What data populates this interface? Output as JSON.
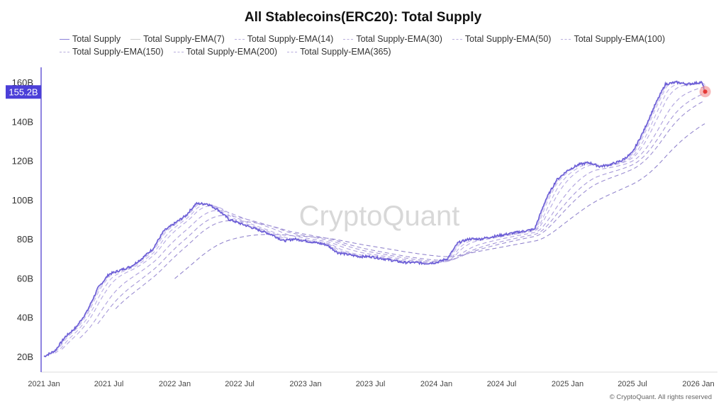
{
  "chart_data": {
    "type": "line",
    "title": "All Stablecoins(ERC20): Total Supply",
    "legend_position": "top",
    "ylim": [
      15,
      165
    ],
    "y_ticks": [
      "20B",
      "40B",
      "60B",
      "80B",
      "100B",
      "120B",
      "140B",
      "160B"
    ],
    "y_tick_values": [
      20,
      40,
      60,
      80,
      100,
      120,
      140,
      160
    ],
    "x_ticks": [
      "2021 Jan",
      "2021 Jul",
      "2022 Jan",
      "2022 Jul",
      "2023 Jan",
      "2023 Jul",
      "2024 Jan",
      "2024 Jul",
      "2025 Jan",
      "2025 Jul",
      "2026 Jan"
    ],
    "x_tick_dates": [
      "2021-01-01",
      "2021-07-01",
      "2022-01-01",
      "2022-07-01",
      "2023-01-01",
      "2023-07-01",
      "2024-01-01",
      "2024-07-01",
      "2025-01-01",
      "2025-07-01",
      "2026-01-01"
    ],
    "xlim": [
      "2021-01-01",
      "2026-02-10"
    ],
    "current_value_label": "155.2B",
    "series": [
      {
        "name": "Total Supply",
        "style": "solid",
        "color": "#6a5cd6",
        "dates": [
          "2021-01-01",
          "2021-02-01",
          "2021-03-01",
          "2021-04-01",
          "2021-05-01",
          "2021-06-01",
          "2021-07-01",
          "2021-08-01",
          "2021-09-01",
          "2021-10-01",
          "2021-11-01",
          "2021-12-01",
          "2022-01-01",
          "2022-02-01",
          "2022-03-01",
          "2022-04-01",
          "2022-05-01",
          "2022-06-01",
          "2022-07-01",
          "2022-08-01",
          "2022-09-01",
          "2022-10-01",
          "2022-11-01",
          "2022-12-01",
          "2023-01-01",
          "2023-02-01",
          "2023-03-01",
          "2023-04-01",
          "2023-05-01",
          "2023-06-01",
          "2023-07-01",
          "2023-08-01",
          "2023-09-01",
          "2023-10-01",
          "2023-11-01",
          "2023-12-01",
          "2024-01-01",
          "2024-02-01",
          "2024-03-01",
          "2024-04-01",
          "2024-05-01",
          "2024-06-01",
          "2024-07-01",
          "2024-08-01",
          "2024-09-01",
          "2024-10-01",
          "2024-11-01",
          "2024-12-01",
          "2025-01-01",
          "2025-02-01",
          "2025-03-01",
          "2025-04-01",
          "2025-05-01",
          "2025-06-01",
          "2025-07-01",
          "2025-08-01",
          "2025-09-01",
          "2025-10-01",
          "2025-11-01",
          "2025-12-01",
          "2026-01-10",
          "2026-01-20"
        ],
        "values": [
          20,
          23,
          30,
          35,
          43,
          55,
          62,
          64,
          66,
          70,
          75,
          84,
          88,
          92,
          98,
          98,
          95,
          90,
          88,
          86,
          84,
          82,
          79,
          80,
          79,
          78,
          77,
          73,
          72,
          71,
          71,
          70,
          69,
          68,
          68,
          67.5,
          68,
          70,
          78,
          80,
          80,
          81,
          82,
          83,
          84,
          85,
          100,
          110,
          115,
          118,
          119,
          117,
          118,
          120,
          124,
          135,
          148,
          159,
          160,
          159,
          160,
          155.2
        ]
      },
      {
        "name": "Total Supply-EMA(7)",
        "style": "solid",
        "period_days": 7
      },
      {
        "name": "Total Supply-EMA(14)",
        "style": "dashed",
        "period_days": 14
      },
      {
        "name": "Total Supply-EMA(30)",
        "style": "dashed",
        "period_days": 30
      },
      {
        "name": "Total Supply-EMA(50)",
        "style": "dashed",
        "period_days": 50
      },
      {
        "name": "Total Supply-EMA(100)",
        "style": "dashed",
        "period_days": 100
      },
      {
        "name": "Total Supply-EMA(150)",
        "style": "dashed",
        "period_days": 150
      },
      {
        "name": "Total Supply-EMA(200)",
        "style": "dashed",
        "period_days": 200
      },
      {
        "name": "Total Supply-EMA(365)",
        "style": "dashed",
        "period_days": 365
      }
    ]
  },
  "watermark": "CryptoQuant",
  "footer": "© CryptoQuant. All rights reserved",
  "colors": {
    "accent": "#4b3fd8",
    "marker": "#e53935"
  }
}
